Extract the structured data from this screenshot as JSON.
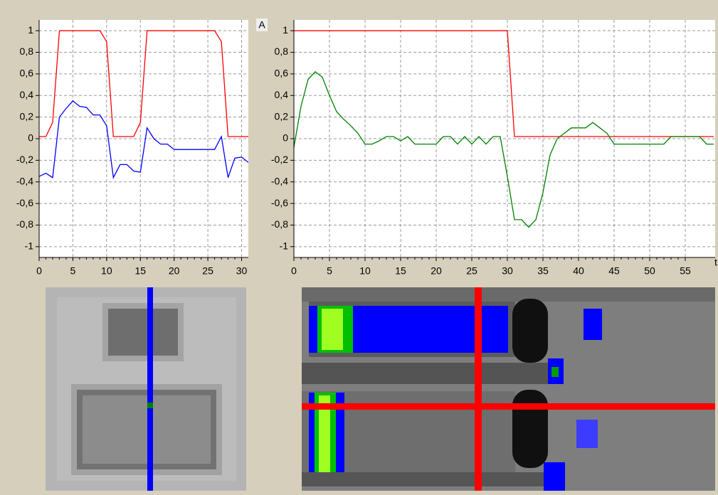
{
  "chart_data": [
    {
      "type": "line",
      "x": [
        0,
        1,
        2,
        3,
        4,
        5,
        6,
        7,
        8,
        9,
        10,
        11,
        12,
        13,
        14,
        15,
        16,
        17,
        18,
        19,
        20,
        21,
        22,
        23,
        24,
        25,
        26,
        27,
        28,
        29,
        30,
        31
      ],
      "series": [
        {
          "color": "#ff0000",
          "values": [
            0.02,
            0.02,
            0.15,
            1,
            1,
            1,
            1,
            1,
            1,
            1,
            0.9,
            0.02,
            0.02,
            0.02,
            0.02,
            0.15,
            1,
            1,
            1,
            1,
            1,
            1,
            1,
            1,
            1,
            1,
            1,
            0.9,
            0.02,
            0.02,
            0.02,
            0.02
          ]
        },
        {
          "color": "#0000ff",
          "values": [
            -0.35,
            -0.32,
            -0.36,
            0.2,
            0.28,
            0.35,
            0.3,
            0.29,
            0.22,
            0.22,
            0.12,
            -0.36,
            -0.24,
            -0.24,
            -0.3,
            -0.31,
            0.1,
            0,
            -0.05,
            -0.05,
            -0.1,
            -0.1,
            -0.1,
            -0.1,
            -0.1,
            -0.1,
            -0.1,
            0.02,
            -0.36,
            -0.18,
            -0.17,
            -0.22
          ]
        }
      ],
      "xlim": [
        0,
        31
      ],
      "ylim": [
        -1.1,
        1.1
      ],
      "xticks": [
        0,
        5,
        10,
        15,
        20,
        25,
        30
      ],
      "yticks": [
        1,
        {
          "value": 0.8,
          "label": "0,8"
        },
        {
          "value": 0.6,
          "label": "0,6"
        },
        {
          "value": 0.4,
          "label": "0,4"
        },
        {
          "value": 0.2,
          "label": "0,2"
        },
        0,
        {
          "value": -0.2,
          "label": "-0,2"
        },
        {
          "value": -0.4,
          "label": "-0,4"
        },
        {
          "value": -0.6,
          "label": "-0,6"
        },
        {
          "value": -0.8,
          "label": "-0,8"
        },
        -1
      ],
      "grid": true
    },
    {
      "type": "line",
      "y_label": "A",
      "x_label": "t",
      "x": [
        0,
        1,
        2,
        3,
        4,
        5,
        6,
        7,
        8,
        9,
        10,
        11,
        12,
        13,
        14,
        15,
        16,
        17,
        18,
        19,
        20,
        21,
        22,
        23,
        24,
        25,
        26,
        27,
        28,
        29,
        30,
        31,
        32,
        33,
        34,
        35,
        36,
        37,
        38,
        39,
        40,
        41,
        42,
        43,
        44,
        45,
        46,
        47,
        48,
        49,
        50,
        51,
        52,
        53,
        54,
        55,
        56,
        57,
        58,
        59
      ],
      "series": [
        {
          "color": "#ff0000",
          "values": [
            1,
            1,
            1,
            1,
            1,
            1,
            1,
            1,
            1,
            1,
            1,
            1,
            1,
            1,
            1,
            1,
            1,
            1,
            1,
            1,
            1,
            1,
            1,
            1,
            1,
            1,
            1,
            1,
            1,
            1,
            1,
            0.02,
            0.02,
            0.02,
            0.02,
            0.02,
            0.02,
            0.02,
            0.02,
            0.02,
            0.02,
            0.02,
            0.02,
            0.02,
            0.02,
            0.02,
            0.02,
            0.02,
            0.02,
            0.02,
            0.02,
            0.02,
            0.02,
            0.02,
            0.02,
            0.02,
            0.02,
            0.02,
            0.02,
            0.02
          ]
        },
        {
          "color": "#008000",
          "values": [
            -0.08,
            0.3,
            0.55,
            0.62,
            0.57,
            0.4,
            0.25,
            0.18,
            0.12,
            0.05,
            -0.05,
            -0.05,
            -0.02,
            0.02,
            0.02,
            -0.02,
            0.02,
            -0.05,
            -0.05,
            -0.05,
            -0.05,
            0.02,
            0.02,
            -0.05,
            0.02,
            -0.05,
            0.02,
            -0.05,
            0.02,
            0.02,
            -0.35,
            -0.75,
            -0.75,
            -0.82,
            -0.75,
            -0.5,
            -0.15,
            0,
            0.05,
            0.1,
            0.1,
            0.1,
            0.15,
            0.1,
            0.05,
            -0.05,
            -0.05,
            -0.05,
            -0.05,
            -0.05,
            -0.05,
            -0.05,
            -0.05,
            0.02,
            0.02,
            0.02,
            0.02,
            0.02,
            -0.05,
            -0.05
          ]
        }
      ],
      "xlim": [
        0,
        59.2
      ],
      "ylim": [
        -1.1,
        1.1
      ],
      "xticks": [
        0,
        5,
        10,
        15,
        20,
        25,
        30,
        35,
        40,
        45,
        50,
        55
      ],
      "yticks": [
        1,
        {
          "value": 0.8,
          "label": "0,8"
        },
        {
          "value": 0.6,
          "label": "0,6"
        },
        {
          "value": 0.4,
          "label": "0,4"
        },
        {
          "value": 0.2,
          "label": "0,2"
        },
        0,
        {
          "value": -0.2,
          "label": "-0,2"
        },
        {
          "value": -0.4,
          "label": "-0,4"
        },
        {
          "value": -0.6,
          "label": "-0,6"
        },
        {
          "value": -0.8,
          "label": "-0,8"
        },
        -1
      ],
      "grid": true
    }
  ]
}
